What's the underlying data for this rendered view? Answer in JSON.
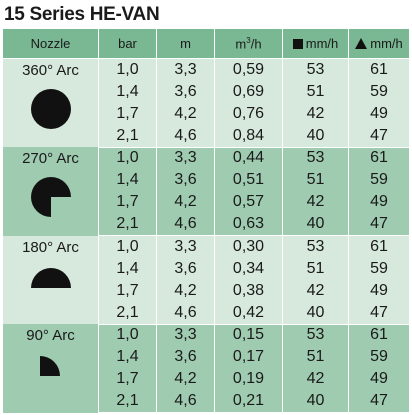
{
  "title": "15 Series HE-VAN",
  "headers": {
    "nozzle": "Nozzle",
    "bar": "bar",
    "m": "m",
    "flow_base": "m",
    "flow_sup": "3",
    "flow_tail": "/h",
    "square_rate": "mm/h",
    "triangle_rate": "mm/h"
  },
  "colors": {
    "header": "#7ab893",
    "light_band": "#d7e9dc",
    "dark_band": "#9fcbb0",
    "shape": "#111111"
  },
  "groups": [
    {
      "label": "360° Arc",
      "icon": "full-circle-icon",
      "rows": [
        [
          "1,0",
          "3,3",
          "0,59",
          "53",
          "61"
        ],
        [
          "1,4",
          "3,6",
          "0,69",
          "51",
          "59"
        ],
        [
          "1,7",
          "4,2",
          "0,76",
          "42",
          "49"
        ],
        [
          "2,1",
          "4,6",
          "0,84",
          "40",
          "47"
        ]
      ]
    },
    {
      "label": "270° Arc",
      "icon": "three-quarter-circle-icon",
      "rows": [
        [
          "1,0",
          "3,3",
          "0,44",
          "53",
          "61"
        ],
        [
          "1,4",
          "3,6",
          "0,51",
          "51",
          "59"
        ],
        [
          "1,7",
          "4,2",
          "0,57",
          "42",
          "49"
        ],
        [
          "2,1",
          "4,6",
          "0,63",
          "40",
          "47"
        ]
      ]
    },
    {
      "label": "180° Arc",
      "icon": "half-circle-icon",
      "rows": [
        [
          "1,0",
          "3,3",
          "0,30",
          "53",
          "61"
        ],
        [
          "1,4",
          "3,6",
          "0,34",
          "51",
          "59"
        ],
        [
          "1,7",
          "4,2",
          "0,38",
          "42",
          "49"
        ],
        [
          "2,1",
          "4,6",
          "0,42",
          "40",
          "47"
        ]
      ]
    },
    {
      "label": "90° Arc",
      "icon": "quarter-circle-icon",
      "rows": [
        [
          "1,0",
          "3,3",
          "0,15",
          "53",
          "61"
        ],
        [
          "1,4",
          "3,6",
          "0,17",
          "51",
          "59"
        ],
        [
          "1,7",
          "4,2",
          "0,19",
          "42",
          "49"
        ],
        [
          "2,1",
          "4,6",
          "0,21",
          "40",
          "47"
        ]
      ]
    }
  ]
}
